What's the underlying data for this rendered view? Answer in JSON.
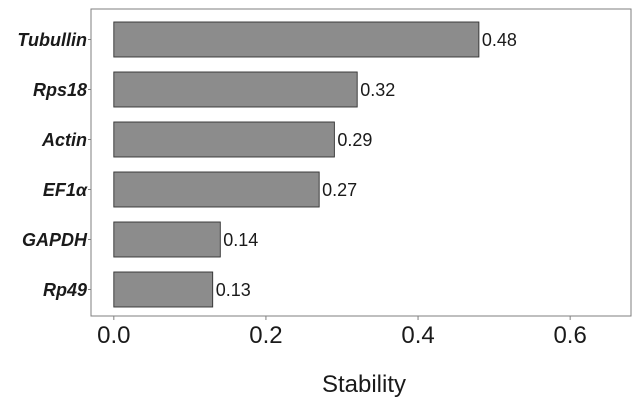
{
  "chart_data": {
    "type": "bar",
    "orientation": "horizontal",
    "categories": [
      "Tubullin",
      "Rps18",
      "Actin",
      "EF1α",
      "GAPDH",
      "Rp49"
    ],
    "values": [
      0.48,
      0.32,
      0.29,
      0.27,
      0.14,
      0.13
    ],
    "value_labels": [
      "0.48",
      "0.32",
      "0.29",
      "0.27",
      "0.14",
      "0.13"
    ],
    "title": "",
    "xlabel": "Stability",
    "ylabel": "",
    "xlim": [
      -0.03,
      0.68
    ],
    "x_ticks": [
      0.0,
      0.2,
      0.4,
      0.6
    ],
    "x_tick_labels": [
      "0.0",
      "0.2",
      "0.4",
      "0.6"
    ],
    "grid": true,
    "colors": {
      "bar_fill": "#8c8c8c",
      "bar_stroke": "#303030",
      "grid": "#ebebeb",
      "frame": "#7f7f7f"
    }
  }
}
